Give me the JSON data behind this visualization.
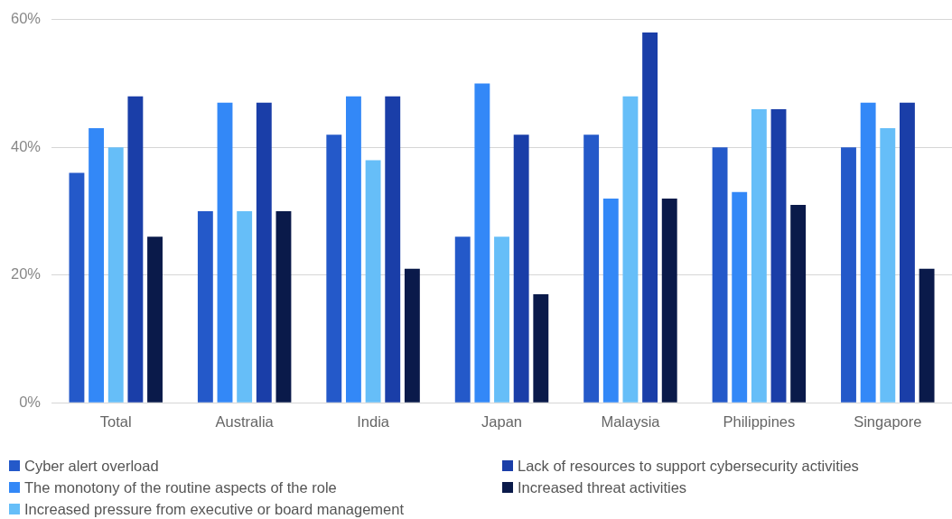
{
  "chart_data": {
    "type": "bar",
    "categories": [
      "Total",
      "Australia",
      "India",
      "Japan",
      "Malaysia",
      "Philippines",
      "Singapore"
    ],
    "series": [
      {
        "name": "Cyber alert overload",
        "color": "#2459c9",
        "values": [
          36,
          30,
          42,
          26,
          42,
          40,
          40
        ]
      },
      {
        "name": "The monotony of the routine aspects of the role",
        "color": "#3388f7",
        "values": [
          43,
          47,
          48,
          50,
          32,
          33,
          47
        ]
      },
      {
        "name": "Increased pressure from executive or board management",
        "color": "#66bef8",
        "values": [
          40,
          30,
          38,
          26,
          48,
          46,
          43
        ]
      },
      {
        "name": "Lack of resources to support cybersecurity activities",
        "color": "#1a3ea8",
        "values": [
          48,
          47,
          48,
          42,
          58,
          46,
          47
        ]
      },
      {
        "name": "Increased threat activities",
        "color": "#0a1a4a",
        "values": [
          26,
          30,
          21,
          17,
          32,
          31,
          21
        ]
      }
    ],
    "ylim": [
      0,
      60
    ],
    "yticks": [
      {
        "value": 0,
        "label": "0%"
      },
      {
        "value": 20,
        "label": "20%"
      },
      {
        "value": 40,
        "label": "40%"
      },
      {
        "value": 60,
        "label": "60%"
      }
    ],
    "grid": "y",
    "legend": "bottom"
  }
}
